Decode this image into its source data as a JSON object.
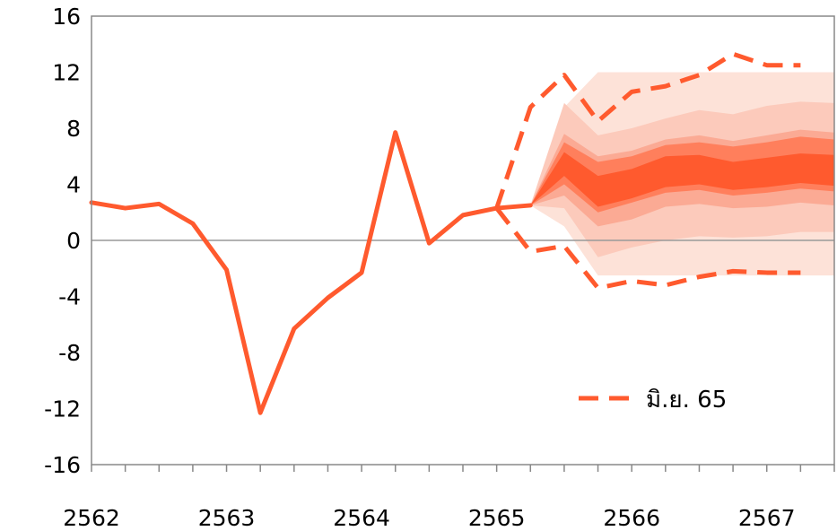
{
  "chart_data": {
    "type": "line",
    "title": "",
    "xlabel": "",
    "ylabel": "",
    "ylim": [
      -16,
      16
    ],
    "yticks": [
      16,
      12,
      8,
      4,
      0,
      -4,
      -8,
      -12,
      -16
    ],
    "x_labels": [
      "2562",
      "2563",
      "2564",
      "2565",
      "2566",
      "2567"
    ],
    "x_range": [
      0,
      22
    ],
    "grid": false,
    "legend_position": "inside-bottom-right",
    "series": [
      {
        "name": "",
        "style": "solid",
        "color": "#FF5A2E",
        "x": [
          0,
          1,
          2,
          3,
          4,
          5,
          6,
          7,
          8,
          9,
          10,
          11,
          12,
          13
        ],
        "values": [
          2.7,
          2.3,
          2.6,
          1.2,
          -2.1,
          -12.3,
          -6.3,
          -4.1,
          -2.3,
          7.7,
          -0.2,
          1.8,
          2.3,
          2.5
        ]
      },
      {
        "name": "มิ.ย. 65",
        "style": "dashed",
        "color": "#FF5A2E",
        "upper": {
          "x": [
            12,
            13,
            14,
            15,
            16,
            17,
            18,
            19,
            20,
            21
          ],
          "values": [
            2.3,
            9.5,
            11.8,
            8.5,
            10.6,
            11.0,
            11.8,
            13.3,
            12.5,
            12.5
          ]
        },
        "lower": {
          "x": [
            12,
            13,
            14,
            15,
            16,
            17,
            18,
            19,
            20,
            21
          ],
          "values": [
            2.3,
            -0.8,
            -0.4,
            -3.4,
            -2.9,
            -3.2,
            -2.6,
            -2.2,
            -2.3,
            -2.3
          ]
        }
      }
    ],
    "fan": {
      "x": [
        13,
        14,
        15,
        16,
        17,
        18,
        19,
        20,
        21,
        22
      ],
      "bands": [
        {
          "color": "#FDE2D8",
          "lower": [
            2.5,
            1.0,
            -2.5,
            -2.5,
            -2.5,
            -2.5,
            -2.5,
            -2.5,
            -2.5,
            -2.5
          ],
          "upper": [
            2.5,
            9.5,
            12.0,
            12.0,
            12.0,
            12.0,
            12.0,
            12.0,
            12.0,
            12.0
          ]
        },
        {
          "color": "#FCCABB",
          "lower": [
            2.5,
            2.3,
            -1.2,
            -0.5,
            0.0,
            0.3,
            0.2,
            0.3,
            0.6,
            0.6
          ],
          "upper": [
            2.5,
            9.8,
            7.5,
            8.0,
            8.7,
            9.3,
            9.0,
            9.6,
            9.9,
            9.8
          ]
        },
        {
          "color": "#FBAA94",
          "lower": [
            2.5,
            3.2,
            1.0,
            1.5,
            2.4,
            2.6,
            2.3,
            2.4,
            2.7,
            2.5
          ],
          "upper": [
            2.5,
            7.6,
            6.0,
            6.4,
            7.2,
            7.5,
            7.1,
            7.5,
            7.9,
            7.7
          ]
        },
        {
          "color": "#FF7F5C",
          "lower": [
            2.5,
            4.0,
            2.0,
            2.7,
            3.4,
            3.6,
            3.2,
            3.4,
            3.7,
            3.5
          ],
          "upper": [
            2.5,
            7.0,
            5.6,
            6.0,
            6.8,
            7.0,
            6.7,
            7.0,
            7.4,
            7.2
          ]
        },
        {
          "color": "#FF5A2E",
          "lower": [
            2.5,
            4.6,
            2.4,
            3.0,
            3.8,
            4.0,
            3.6,
            3.8,
            4.1,
            3.9
          ],
          "upper": [
            2.5,
            6.3,
            4.6,
            5.1,
            6.0,
            6.1,
            5.6,
            5.9,
            6.2,
            6.1
          ]
        }
      ]
    }
  },
  "legend": {
    "label": "มิ.ย. 65"
  }
}
